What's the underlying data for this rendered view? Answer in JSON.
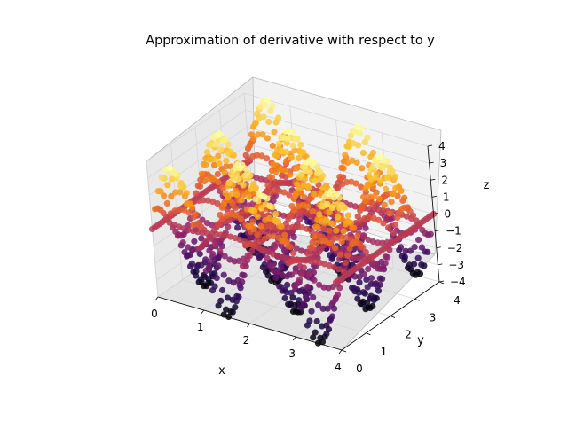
{
  "chart_data": {
    "type": "scatter",
    "projection": "3d",
    "title": "Approximation of derivative with respect to y",
    "xlabel": "x",
    "ylabel": "y",
    "zlabel": "z",
    "xlim": [
      0,
      4
    ],
    "ylim": [
      0,
      4
    ],
    "zlim": [
      -4,
      4
    ],
    "xticks": [
      0,
      1,
      2,
      3,
      4
    ],
    "yticks": [
      0,
      1,
      2,
      3,
      4
    ],
    "zticks": [
      -4,
      -3,
      -2,
      -1,
      0,
      1,
      2,
      3,
      4
    ],
    "tick_labels": {
      "x": [
        "0",
        "1",
        "2",
        "3",
        "4"
      ],
      "y": [
        "0",
        "1",
        "2",
        "3",
        "4"
      ],
      "z": [
        "−4",
        "−3",
        "−2",
        "−1",
        "0",
        "1",
        "2",
        "3",
        "4"
      ]
    },
    "colormap": "inferno",
    "grid": true,
    "legend": "none",
    "surface_model": {
      "function": "z = 4 * sin(pi*x) * cos(pi*y)",
      "x_range": [
        0,
        4
      ],
      "y_range": [
        0,
        4
      ],
      "samples": 40
    },
    "colors": {
      "pane": "#f2f2f2",
      "grid": "#d7d7d7",
      "axis": "#000000"
    }
  }
}
